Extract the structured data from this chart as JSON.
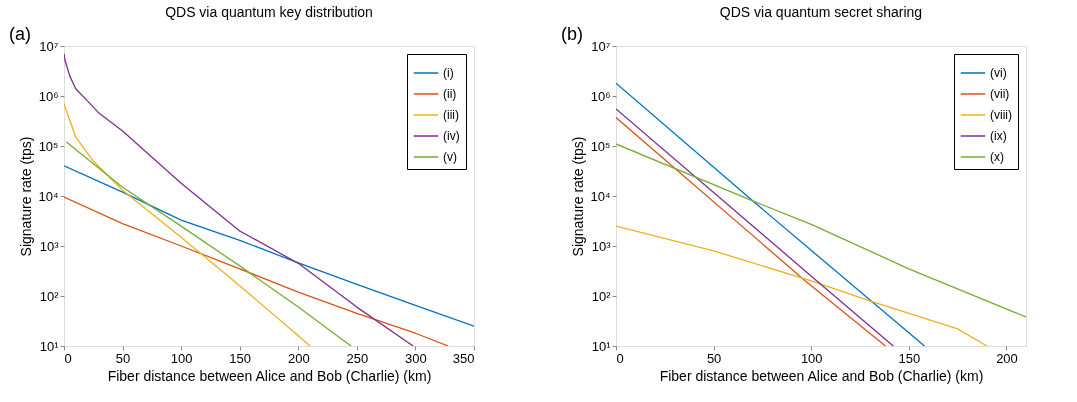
{
  "chart_data": [
    {
      "type": "line",
      "title": "QDS via quantum key distribution",
      "xlabel": "Fiber distance between Alice and Bob (Charlie) (km)",
      "ylabel": "Signature rate (tps)",
      "annotations": [
        "(a)"
      ],
      "log": "y",
      "grid": false,
      "legend": "top right",
      "line_style": "solid",
      "marker": "none",
      "xlim": [
        0,
        350
      ],
      "xticks": [
        0,
        50,
        100,
        150,
        200,
        250,
        300,
        350
      ],
      "ylim": [
        10,
        10000000
      ],
      "yticks": [
        {
          "value": 10,
          "label": "10¹"
        },
        {
          "value": 100,
          "label": "10²"
        },
        {
          "value": 1000,
          "label": "10³"
        },
        {
          "value": 10000,
          "label": "10⁴"
        },
        {
          "value": 100000,
          "label": "10⁵"
        },
        {
          "value": 1000000,
          "label": "10⁶"
        },
        {
          "value": 10000000,
          "label": "10⁷"
        }
      ],
      "series": [
        {
          "name": "(i)",
          "color": "#0072bd",
          "x": [
            0,
            50,
            100,
            150,
            200,
            250,
            300,
            350
          ],
          "values": [
            40000,
            12000,
            3300,
            1300,
            460,
            170,
            65,
            25
          ]
        },
        {
          "name": "(ii)",
          "color": "#d95319",
          "x": [
            0,
            50,
            100,
            150,
            200,
            250,
            300,
            328
          ],
          "values": [
            9500,
            2800,
            1000,
            350,
            120,
            45,
            18,
            10
          ]
        },
        {
          "name": "(iii)",
          "color": "#edb120",
          "x": [
            0,
            10,
            25,
            50,
            100,
            150,
            200,
            210
          ],
          "values": [
            700000,
            150000,
            50000,
            13000,
            1500,
            160,
            16,
            10
          ]
        },
        {
          "name": "(iv)",
          "color": "#7e2f8e",
          "x": [
            0,
            1,
            5,
            10,
            20,
            30,
            50,
            100,
            150,
            200,
            250,
            298
          ],
          "values": [
            7000000,
            5000000,
            2500000,
            1400000,
            800000,
            450000,
            200000,
            18000,
            2000,
            450,
            60,
            10
          ]
        },
        {
          "name": "(v)",
          "color": "#77ac30",
          "x": [
            2,
            50,
            100,
            150,
            200,
            245
          ],
          "values": [
            120000,
            15000,
            2500,
            400,
            60,
            10
          ]
        }
      ]
    },
    {
      "type": "line",
      "title": "QDS via quantum secret sharing",
      "xlabel": "Fiber distance between Alice and Bob (Charlie) (km)",
      "ylabel": "Signature rate (tps)",
      "annotations": [
        "(b)"
      ],
      "log": "y",
      "grid": false,
      "legend": "top right",
      "line_style": "solid",
      "marker": "none",
      "xlim": [
        0,
        210
      ],
      "xticks": [
        0,
        50,
        100,
        150,
        200
      ],
      "ylim": [
        10,
        10000000
      ],
      "yticks": [
        {
          "value": 10,
          "label": "10¹"
        },
        {
          "value": 100,
          "label": "10²"
        },
        {
          "value": 1000,
          "label": "10³"
        },
        {
          "value": 10000,
          "label": "10⁴"
        },
        {
          "value": 100000,
          "label": "10⁵"
        },
        {
          "value": 1000000,
          "label": "10⁶"
        },
        {
          "value": 10000000,
          "label": "10⁷"
        }
      ],
      "series": [
        {
          "name": "(vi)",
          "color": "#0072bd",
          "x": [
            0,
            70,
            158
          ],
          "values": [
            1800000,
            8000,
            10
          ]
        },
        {
          "name": "(vii)",
          "color": "#d95319",
          "x": [
            0,
            97,
            138
          ],
          "values": [
            370000,
            200,
            10
          ]
        },
        {
          "name": "(viii)",
          "color": "#edb120",
          "x": [
            0,
            50,
            100,
            130,
            150,
            175,
            190
          ],
          "values": [
            2500,
            800,
            200,
            80,
            45,
            22,
            10
          ]
        },
        {
          "name": "(ix)",
          "color": "#7e2f8e",
          "x": [
            0,
            105,
            142
          ],
          "values": [
            550000,
            170,
            10
          ]
        },
        {
          "name": "(x)",
          "color": "#77ac30",
          "x": [
            0,
            70,
            100,
            150,
            210
          ],
          "values": [
            110000,
            8000,
            2700,
            350,
            38
          ]
        }
      ]
    }
  ]
}
